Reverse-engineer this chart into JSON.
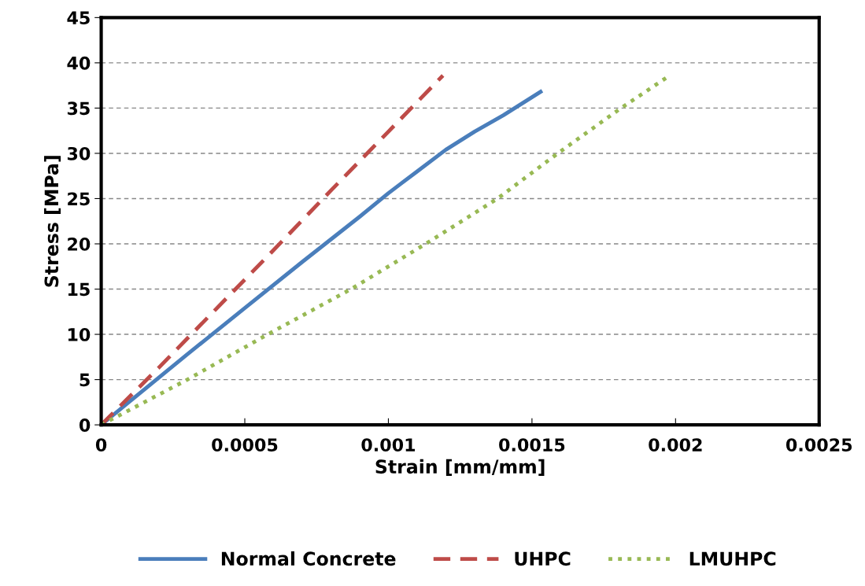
{
  "chart_data": {
    "type": "line",
    "xlabel": "Strain [mm/mm]",
    "ylabel": "Stress [MPa]",
    "xlim": [
      0,
      0.0025
    ],
    "xticks": [
      0,
      0.0005,
      0.001,
      0.0015,
      0.002,
      0.0025
    ],
    "ylim": [
      0,
      45
    ],
    "yticks": [
      0,
      5,
      10,
      15,
      20,
      25,
      30,
      35,
      40,
      45
    ],
    "grid": "y",
    "legend": "bottom",
    "series": [
      {
        "name": "Normal Concrete",
        "color": "#4a7ebb",
        "line_style": "solid",
        "x": [
          0,
          0.0001,
          0.0003,
          0.0005,
          0.0007,
          0.0009,
          0.001,
          0.0011,
          0.0012,
          0.0013,
          0.0014,
          0.00153
        ],
        "values": [
          0,
          2.6,
          7.8,
          12.9,
          18,
          23,
          25.6,
          28,
          30.4,
          32.4,
          34.2,
          36.8
        ]
      },
      {
        "name": "UHPC",
        "color": "#be4b48",
        "line_style": "dashed",
        "x": [
          0,
          0.0002,
          0.0004,
          0.0006,
          0.0008,
          0.001,
          0.00119
        ],
        "values": [
          0,
          6.3,
          12.8,
          19.3,
          25.9,
          32.4,
          38.6
        ]
      },
      {
        "name": "LMUHPC",
        "color": "#98b954",
        "line_style": "dotted",
        "x": [
          0,
          0.0003,
          0.00058,
          0.00087,
          0.00113,
          0.00138,
          0.00159,
          0.00181,
          0.00197
        ],
        "values": [
          0,
          5,
          10,
          15,
          20,
          25,
          30,
          35,
          38.4
        ]
      }
    ]
  }
}
